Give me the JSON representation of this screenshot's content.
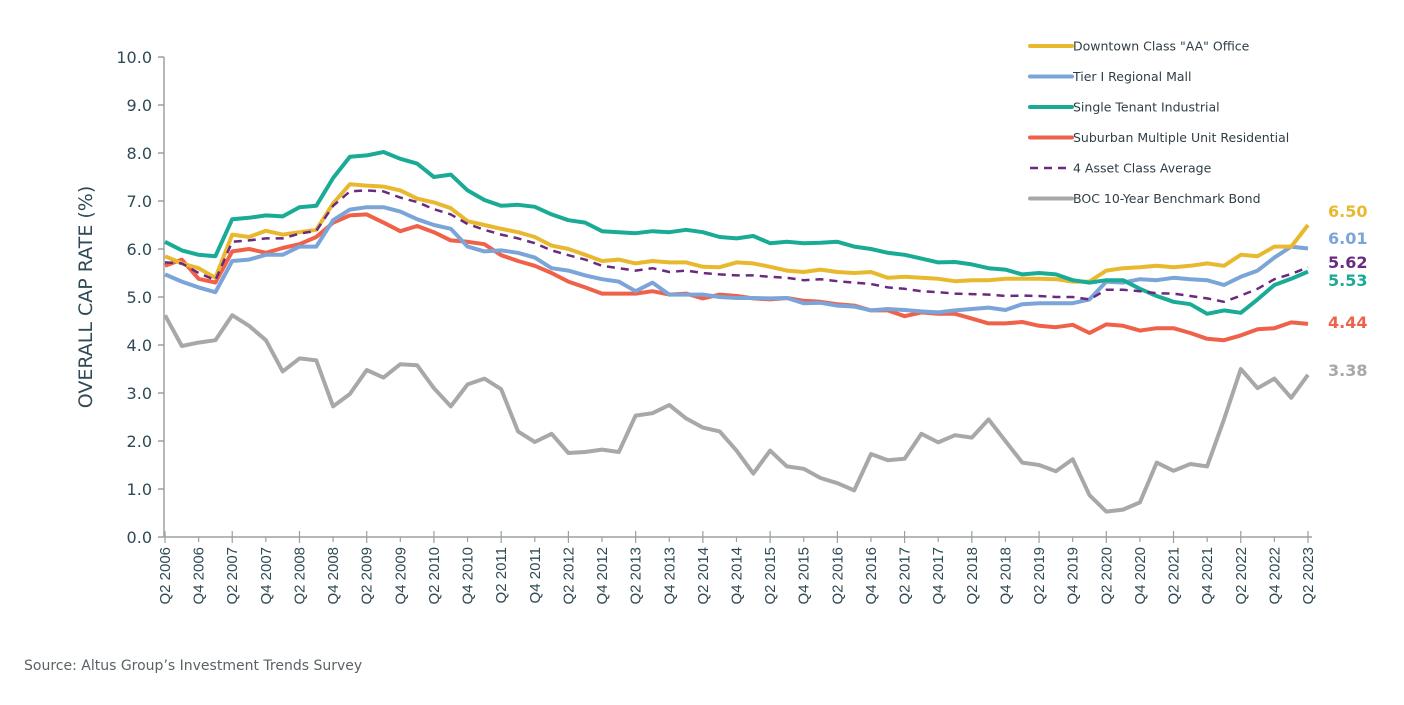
{
  "chart_data": {
    "type": "line",
    "title": "",
    "xlabel": "",
    "ylabel": "OVERALL CAP RATE (%)",
    "ylim": [
      0,
      10
    ],
    "yticks": [
      "0.0",
      "1.0",
      "2.0",
      "3.0",
      "4.0",
      "5.0",
      "6.0",
      "7.0",
      "8.0",
      "9.0",
      "10.0"
    ],
    "grid": false,
    "legend_position": "top-right",
    "x": [
      "Q2 2006",
      "Q3 2006",
      "Q4 2006",
      "Q1 2007",
      "Q2 2007",
      "Q3 2007",
      "Q4 2007",
      "Q1 2008",
      "Q2 2008",
      "Q3 2008",
      "Q4 2008",
      "Q1 2009",
      "Q2 2009",
      "Q3 2009",
      "Q4 2009",
      "Q1 2010",
      "Q2 2010",
      "Q3 2010",
      "Q4 2010",
      "Q1 2011",
      "Q2 2011",
      "Q3 2011",
      "Q4 2011",
      "Q1 2012",
      "Q2 2012",
      "Q3 2012",
      "Q4 2012",
      "Q1 2013",
      "Q2 2013",
      "Q3 2013",
      "Q4 2013",
      "Q1 2014",
      "Q2 2014",
      "Q3 2014",
      "Q4 2014",
      "Q1 2015",
      "Q2 2015",
      "Q3 2015",
      "Q4 2015",
      "Q1 2016",
      "Q2 2016",
      "Q3 2016",
      "Q4 2016",
      "Q1 2017",
      "Q2 2017",
      "Q3 2017",
      "Q4 2017",
      "Q1 2018",
      "Q2 2018",
      "Q3 2018",
      "Q4 2018",
      "Q1 2019",
      "Q2 2019",
      "Q3 2019",
      "Q4 2019",
      "Q1 2020",
      "Q2 2020",
      "Q3 2020",
      "Q4 2020",
      "Q1 2021",
      "Q2 2021",
      "Q3 2021",
      "Q4 2021",
      "Q1 2022",
      "Q2 2022",
      "Q3 2022",
      "Q4 2022",
      "Q1 2023",
      "Q2 2023"
    ],
    "xtick_labels": [
      "Q2 2006",
      "Q4 2006",
      "Q2 2007",
      "Q4 2007",
      "Q2 2008",
      "Q4 2008",
      "Q2 2009",
      "Q4 2009",
      "Q2 2010",
      "Q4 2010",
      "Q2 2011",
      "Q4 2011",
      "Q2 2012",
      "Q4 2012",
      "Q2 2013",
      "Q4 2013",
      "Q2 2014",
      "Q4 2014",
      "Q2 2015",
      "Q4 2015",
      "Q2 2016",
      "Q4 2016",
      "Q2 2017",
      "Q4 2017",
      "Q2 2018",
      "Q4 2018",
      "Q2 2019",
      "Q4 2019",
      "Q2 2020",
      "Q4 2020",
      "Q2 2021",
      "Q4 2021",
      "Q2 2022",
      "Q4 2022",
      "Q2 2023"
    ],
    "series": [
      {
        "name": "Downtown Class \"AA\" Office",
        "color": "#e8b92f",
        "dashed": false,
        "end_label": "6.50",
        "values": [
          5.85,
          5.7,
          5.6,
          5.4,
          6.3,
          6.25,
          6.38,
          6.3,
          6.35,
          6.4,
          6.95,
          7.35,
          7.32,
          7.3,
          7.22,
          7.05,
          6.97,
          6.85,
          6.58,
          6.5,
          6.42,
          6.35,
          6.25,
          6.07,
          6.0,
          5.88,
          5.75,
          5.78,
          5.7,
          5.75,
          5.72,
          5.72,
          5.63,
          5.62,
          5.72,
          5.7,
          5.63,
          5.55,
          5.52,
          5.57,
          5.52,
          5.5,
          5.52,
          5.4,
          5.42,
          5.4,
          5.38,
          5.33,
          5.35,
          5.35,
          5.38,
          5.38,
          5.38,
          5.37,
          5.32,
          5.32,
          5.55,
          5.6,
          5.62,
          5.65,
          5.62,
          5.65,
          5.7,
          5.65,
          5.88,
          5.85,
          6.05,
          6.05,
          6.5
        ]
      },
      {
        "name": "Tier I Regional Mall",
        "color": "#7ba4d8",
        "dashed": false,
        "end_label": "6.01",
        "values": [
          5.47,
          5.32,
          5.2,
          5.1,
          5.75,
          5.78,
          5.88,
          5.88,
          6.05,
          6.05,
          6.6,
          6.82,
          6.87,
          6.87,
          6.78,
          6.62,
          6.5,
          6.42,
          6.05,
          5.95,
          5.97,
          5.92,
          5.82,
          5.6,
          5.55,
          5.45,
          5.37,
          5.32,
          5.12,
          5.3,
          5.05,
          5.05,
          5.05,
          5.0,
          4.98,
          4.98,
          4.97,
          4.98,
          4.87,
          4.88,
          4.82,
          4.8,
          4.72,
          4.75,
          4.73,
          4.7,
          4.68,
          4.72,
          4.75,
          4.78,
          4.73,
          4.85,
          4.87,
          4.87,
          4.87,
          4.95,
          5.32,
          5.3,
          5.37,
          5.35,
          5.4,
          5.37,
          5.35,
          5.25,
          5.42,
          5.55,
          5.82,
          6.05,
          6.01
        ]
      },
      {
        "name": "Single Tenant Industrial",
        "color": "#1aab96",
        "dashed": false,
        "end_label": "5.53",
        "values": [
          6.15,
          5.97,
          5.88,
          5.85,
          6.62,
          6.65,
          6.7,
          6.68,
          6.87,
          6.9,
          7.48,
          7.92,
          7.95,
          8.02,
          7.88,
          7.78,
          7.5,
          7.55,
          7.22,
          7.02,
          6.9,
          6.92,
          6.88,
          6.72,
          6.6,
          6.55,
          6.37,
          6.35,
          6.33,
          6.37,
          6.35,
          6.4,
          6.35,
          6.25,
          6.22,
          6.27,
          6.12,
          6.15,
          6.12,
          6.13,
          6.15,
          6.05,
          6.0,
          5.92,
          5.88,
          5.8,
          5.72,
          5.73,
          5.68,
          5.6,
          5.57,
          5.47,
          5.5,
          5.47,
          5.35,
          5.3,
          5.35,
          5.35,
          5.17,
          5.02,
          4.9,
          4.85,
          4.65,
          4.72,
          4.67,
          4.95,
          5.25,
          5.38,
          5.53
        ]
      },
      {
        "name": "Suburban Multiple Unit Residential",
        "color": "#ef6149",
        "dashed": false,
        "end_label": "4.44",
        "values": [
          5.65,
          5.78,
          5.38,
          5.3,
          5.95,
          6.0,
          5.92,
          6.02,
          6.1,
          6.25,
          6.55,
          6.7,
          6.72,
          6.55,
          6.37,
          6.48,
          6.35,
          6.18,
          6.15,
          6.1,
          5.87,
          5.75,
          5.65,
          5.5,
          5.32,
          5.2,
          5.07,
          5.07,
          5.07,
          5.12,
          5.05,
          5.07,
          4.97,
          5.05,
          5.02,
          4.97,
          4.95,
          4.98,
          4.92,
          4.9,
          4.85,
          4.82,
          4.72,
          4.72,
          4.6,
          4.68,
          4.65,
          4.65,
          4.55,
          4.45,
          4.45,
          4.48,
          4.4,
          4.37,
          4.42,
          4.25,
          4.43,
          4.4,
          4.3,
          4.35,
          4.35,
          4.25,
          4.13,
          4.1,
          4.2,
          4.33,
          4.35,
          4.47,
          4.44
        ]
      },
      {
        "name": "4 Asset Class Average",
        "color": "#6b2a7f",
        "dashed": true,
        "end_label": "5.62",
        "values": [
          5.72,
          5.7,
          5.5,
          5.35,
          6.15,
          6.18,
          6.22,
          6.22,
          6.32,
          6.38,
          6.9,
          7.2,
          7.22,
          7.2,
          7.07,
          6.98,
          6.83,
          6.72,
          6.52,
          6.4,
          6.3,
          6.22,
          6.12,
          5.97,
          5.87,
          5.78,
          5.65,
          5.6,
          5.55,
          5.6,
          5.52,
          5.55,
          5.5,
          5.47,
          5.45,
          5.45,
          5.42,
          5.4,
          5.35,
          5.37,
          5.33,
          5.3,
          5.27,
          5.2,
          5.17,
          5.12,
          5.1,
          5.07,
          5.06,
          5.05,
          5.02,
          5.03,
          5.02,
          5.0,
          5.0,
          4.95,
          5.15,
          5.15,
          5.12,
          5.08,
          5.07,
          5.02,
          4.97,
          4.9,
          5.03,
          5.17,
          5.37,
          5.48,
          5.62
        ]
      },
      {
        "name": "BOC 10-Year Benchmark Bond",
        "color": "#a8a8a8",
        "dashed": false,
        "end_label": "3.38",
        "values": [
          4.62,
          3.98,
          4.05,
          4.1,
          4.62,
          4.4,
          4.1,
          3.45,
          3.72,
          3.68,
          2.72,
          2.98,
          3.48,
          3.32,
          3.6,
          3.58,
          3.1,
          2.72,
          3.18,
          3.3,
          3.08,
          2.2,
          1.98,
          2.15,
          1.75,
          1.77,
          1.82,
          1.77,
          2.53,
          2.58,
          2.75,
          2.47,
          2.28,
          2.2,
          1.8,
          1.32,
          1.8,
          1.47,
          1.42,
          1.23,
          1.12,
          0.97,
          1.73,
          1.6,
          1.63,
          2.15,
          1.97,
          2.12,
          2.07,
          2.45,
          2.0,
          1.55,
          1.5,
          1.37,
          1.62,
          0.87,
          0.53,
          0.57,
          0.72,
          1.55,
          1.38,
          1.52,
          1.47,
          2.45,
          3.5,
          3.1,
          3.3,
          2.9,
          3.38
        ]
      }
    ]
  },
  "source": "Source:  Altus Group’s Investment Trends Survey"
}
